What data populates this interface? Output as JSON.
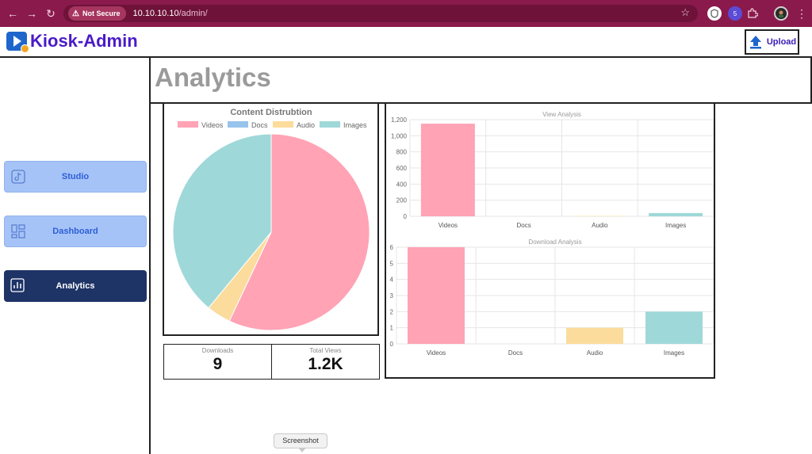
{
  "browser": {
    "security_label": "Not Secure",
    "url_host": "10.10.10.10",
    "url_path": "/admin/",
    "extension_badge": "5",
    "icons": [
      "back-icon",
      "forward-icon",
      "reload-icon",
      "warning-icon",
      "star-icon",
      "extension-icon",
      "puzzle-icon",
      "profile-icon",
      "menu-icon"
    ]
  },
  "header": {
    "brand": "Kiosk-Admin",
    "upload_label": "Upload"
  },
  "sidebar": {
    "items": [
      {
        "label": "Studio",
        "icon": "tiktok-icon",
        "active": false
      },
      {
        "label": "Dashboard",
        "icon": "grid-icon",
        "active": false
      },
      {
        "label": "Analytics",
        "icon": "chart-icon",
        "active": true
      }
    ]
  },
  "main": {
    "title": "Analytics"
  },
  "stats": {
    "downloads_label": "Downloads",
    "downloads_value": "9",
    "views_label": "Total Views",
    "views_value": "1.2K"
  },
  "colors": {
    "Videos": "#ffa3b5",
    "Docs": "#98c4ec",
    "Audio": "#fbdc9c",
    "Images": "#9fd8d8"
  },
  "tooltip": "Screenshot",
  "chart_data": [
    {
      "type": "pie",
      "title": "Content Distrubtion",
      "categories": [
        "Videos",
        "Docs",
        "Audio",
        "Images"
      ],
      "values": [
        57,
        0,
        4,
        39
      ],
      "legend": "top"
    },
    {
      "type": "bar",
      "title": "View Analysis",
      "categories": [
        "Videos",
        "Docs",
        "Audio",
        "Images"
      ],
      "values": [
        1150,
        0,
        5,
        40
      ],
      "ylim": [
        0,
        1200
      ],
      "yticks": [
        "0",
        "200",
        "400",
        "600",
        "800",
        "1,000",
        "1,200"
      ],
      "grid": true
    },
    {
      "type": "bar",
      "title": "Download Analysis",
      "categories": [
        "Videos",
        "Docs",
        "Audio",
        "Images"
      ],
      "values": [
        6,
        0,
        1,
        2
      ],
      "ylim": [
        0,
        6
      ],
      "yticks": [
        "0",
        "1",
        "2",
        "3",
        "4",
        "5",
        "6"
      ],
      "grid": true
    }
  ]
}
